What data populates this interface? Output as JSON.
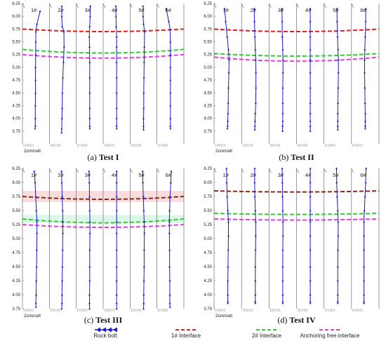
{
  "chart_data": [
    {
      "type": "line",
      "caption_prefix": "(a) ",
      "caption_bold": "Test I",
      "ylim": [
        3.5,
        6.25
      ],
      "yticks": [
        "6.25",
        "6.00",
        "5.75",
        "5.50",
        "5.25",
        "5.00",
        "4.75",
        "4.50",
        "4.25",
        "4.00",
        "3.75"
      ],
      "scale_label": "2cm/cell",
      "bolts": [
        {
          "name": "1#",
          "x": [
            2.0,
            0.5,
            0.0,
            -0.1,
            -0.1,
            -0.2,
            -0.2,
            -0.2,
            -0.3,
            -0.3,
            -0.3,
            -0.4
          ],
          "y": [
            6.1,
            5.85,
            5.7,
            5.5,
            5.25,
            5.0,
            4.75,
            4.5,
            4.25,
            4.0,
            3.85,
            3.8
          ]
        },
        {
          "name": "2#",
          "x": [
            -0.5,
            -0.5,
            -0.3,
            0.5,
            0.6,
            0.3,
            0.0,
            -0.2,
            -0.3,
            -0.4,
            -0.5,
            -0.6
          ],
          "y": [
            6.2,
            6.0,
            5.8,
            5.7,
            5.4,
            5.1,
            4.8,
            4.5,
            4.2,
            4.0,
            3.8,
            3.72
          ]
        },
        {
          "name": "3#",
          "x": [
            0.3,
            0.2,
            0.0,
            -0.2,
            -0.1,
            0.0,
            0.0,
            0.0,
            0.0,
            0.0,
            0.0,
            0.0
          ],
          "y": [
            6.2,
            6.0,
            5.8,
            5.6,
            5.4,
            5.1,
            4.8,
            4.5,
            4.2,
            4.0,
            3.85,
            3.8
          ]
        },
        {
          "name": "4#",
          "x": [
            -0.4,
            -0.3,
            -0.2,
            0.0,
            0.0,
            0.0,
            0.0,
            0.0,
            0.0,
            0.0,
            0.0,
            0.0
          ],
          "y": [
            6.2,
            6.0,
            5.8,
            5.6,
            5.4,
            5.1,
            4.8,
            4.5,
            4.2,
            4.0,
            3.85,
            3.8
          ]
        },
        {
          "name": "5#",
          "x": [
            -0.2,
            -0.2,
            0.0,
            0.5,
            0.4,
            0.3,
            0.2,
            0.1,
            0.1,
            0.0,
            0.0,
            0.0
          ],
          "y": [
            6.2,
            6.0,
            5.85,
            5.7,
            5.4,
            5.1,
            4.8,
            4.5,
            4.2,
            4.0,
            3.85,
            3.78
          ]
        },
        {
          "name": "6#",
          "x": [
            -2.0,
            -0.8,
            -0.2,
            0.0,
            0.0,
            0.0,
            0.0,
            0.0,
            0.0,
            0.0,
            0.0,
            0.0
          ],
          "y": [
            6.15,
            5.9,
            5.75,
            5.5,
            5.25,
            5.0,
            4.75,
            4.5,
            4.25,
            4.0,
            3.85,
            3.8
          ]
        }
      ],
      "interfaces": [
        {
          "name": "1# Interface",
          "color": "#e02020",
          "x": [
            0,
            3,
            6
          ],
          "y": [
            5.75,
            5.7,
            5.75
          ]
        },
        {
          "name": "2# Interface",
          "color": "#33cc33",
          "x": [
            0,
            3,
            6
          ],
          "y": [
            5.35,
            5.28,
            5.35
          ]
        },
        {
          "name": "Anchoring free interface",
          "color": "#e040e0",
          "x": [
            0,
            3,
            6
          ],
          "y": [
            5.25,
            5.18,
            5.25
          ]
        }
      ]
    },
    {
      "type": "line",
      "caption_prefix": "(b) ",
      "caption_bold": "Test II",
      "ylim": [
        3.5,
        6.25
      ],
      "yticks": [
        "6.25",
        "6.00",
        "5.75",
        "5.50",
        "5.25",
        "5.00",
        "4.75",
        "4.50",
        "4.25",
        "4.00",
        "3.75"
      ],
      "scale_label": "2cm/cell",
      "bolts": [
        {
          "name": "1#",
          "x": [
            -1.5,
            -1.0,
            -0.3,
            0.3,
            0.6,
            0.5,
            0.3,
            0.2,
            0.1,
            0.0,
            -0.1,
            -0.2
          ],
          "y": [
            6.15,
            5.9,
            5.6,
            5.35,
            5.15,
            4.9,
            4.6,
            4.3,
            4.1,
            3.95,
            3.85,
            3.8
          ]
        },
        {
          "name": "2#",
          "x": [
            -0.5,
            -0.4,
            -0.2,
            0.0,
            0.2,
            0.3,
            0.3,
            0.2,
            0.0,
            -0.1,
            -0.2,
            -0.2
          ],
          "y": [
            6.15,
            5.9,
            5.6,
            5.35,
            5.15,
            4.9,
            4.6,
            4.3,
            4.1,
            3.95,
            3.85,
            3.78
          ]
        },
        {
          "name": "3#",
          "x": [
            -0.4,
            -0.3,
            -0.2,
            0.0,
            0.1,
            0.1,
            0.0,
            0.0,
            0.0,
            0.0,
            -0.1,
            -0.1
          ],
          "y": [
            6.15,
            5.9,
            5.6,
            5.35,
            5.15,
            4.9,
            4.6,
            4.3,
            4.1,
            3.95,
            3.85,
            3.75
          ]
        },
        {
          "name": "4#",
          "x": [
            0.0,
            0.0,
            0.0,
            0.0,
            0.0,
            0.0,
            0.0,
            0.0,
            0.0,
            0.0,
            0.0,
            0.0
          ],
          "y": [
            6.15,
            5.9,
            5.6,
            5.35,
            5.15,
            4.9,
            4.6,
            4.3,
            4.1,
            3.95,
            3.85,
            3.75
          ]
        },
        {
          "name": "5#",
          "x": [
            -0.4,
            -0.3,
            -0.1,
            0.1,
            0.3,
            0.3,
            0.2,
            0.1,
            0.0,
            0.0,
            0.0,
            0.0
          ],
          "y": [
            6.15,
            5.9,
            5.6,
            5.35,
            5.15,
            4.9,
            4.6,
            4.3,
            4.1,
            3.95,
            3.85,
            3.78
          ]
        },
        {
          "name": "6#",
          "x": [
            0.3,
            0.2,
            0.0,
            -0.2,
            -0.3,
            -0.3,
            -0.2,
            -0.1,
            0.0,
            0.0,
            0.0,
            0.0
          ],
          "y": [
            6.15,
            5.9,
            5.6,
            5.35,
            5.15,
            4.9,
            4.6,
            4.3,
            4.1,
            3.95,
            3.85,
            3.8
          ]
        }
      ],
      "interfaces": [
        {
          "name": "1# Interface",
          "color": "#e02020",
          "x": [
            0,
            3,
            6
          ],
          "y": [
            5.75,
            5.7,
            5.75
          ]
        },
        {
          "name": "2# Interface",
          "color": "#33cc33",
          "x": [
            0,
            3,
            6
          ],
          "y": [
            5.27,
            5.22,
            5.27
          ]
        },
        {
          "name": "Anchoring free interface",
          "color": "#e040e0",
          "x": [
            0,
            3,
            6
          ],
          "y": [
            5.2,
            5.12,
            5.2
          ]
        }
      ]
    },
    {
      "type": "line",
      "caption_prefix": "(c) ",
      "caption_bold": "Test III",
      "ylim": [
        3.75,
        6.25
      ],
      "yticks": [
        "6.25",
        "6.00",
        "5.75",
        "5.50",
        "5.25",
        "5.00",
        "4.75",
        "4.50",
        "4.25",
        "4.00",
        "3.75"
      ],
      "scale_label": "2cm/cell",
      "bolts": [
        {
          "name": "1#",
          "x": [
            -0.8,
            -0.4,
            -0.1,
            0.2,
            0.5,
            0.5,
            0.4,
            0.3,
            0.2,
            0.1,
            0.0,
            0.0
          ],
          "y": [
            6.2,
            6.0,
            5.75,
            5.5,
            5.3,
            5.1,
            4.8,
            4.5,
            4.25,
            4.0,
            3.85,
            3.78
          ]
        },
        {
          "name": "2#",
          "x": [
            -0.6,
            -0.5,
            -0.3,
            -0.1,
            0.0,
            0.0,
            -0.1,
            -0.2,
            -0.3,
            -0.4,
            -0.4,
            -0.5
          ],
          "y": [
            6.2,
            6.0,
            5.75,
            5.5,
            5.3,
            5.1,
            4.8,
            4.5,
            4.25,
            4.0,
            3.85,
            3.75
          ]
        },
        {
          "name": "3#",
          "x": [
            -0.3,
            -0.2,
            -0.1,
            0.0,
            0.1,
            0.1,
            0.0,
            0.0,
            0.0,
            -0.1,
            -0.1,
            -0.1
          ],
          "y": [
            6.2,
            6.0,
            5.75,
            5.5,
            5.3,
            5.1,
            4.8,
            4.5,
            4.25,
            4.0,
            3.85,
            3.75
          ]
        },
        {
          "name": "4#",
          "x": [
            0.0,
            0.0,
            0.0,
            0.0,
            0.0,
            0.0,
            0.0,
            0.0,
            0.0,
            0.0,
            0.0,
            0.0
          ],
          "y": [
            6.2,
            6.0,
            5.75,
            5.5,
            5.3,
            5.1,
            4.8,
            4.5,
            4.25,
            4.0,
            3.85,
            3.75
          ]
        },
        {
          "name": "5#",
          "x": [
            -0.4,
            -0.3,
            -0.1,
            0.1,
            0.3,
            0.4,
            0.3,
            0.3,
            0.2,
            0.1,
            0.1,
            0.0
          ],
          "y": [
            6.2,
            6.0,
            5.75,
            5.5,
            5.3,
            5.1,
            4.8,
            4.5,
            4.25,
            4.0,
            3.85,
            3.75
          ]
        },
        {
          "name": "6#",
          "x": [
            0.4,
            0.2,
            -0.2,
            -0.4,
            -0.5,
            -0.5,
            -0.4,
            -0.4,
            -0.3,
            -0.3,
            -0.3,
            -0.2
          ],
          "y": [
            6.2,
            6.0,
            5.75,
            5.5,
            5.3,
            5.1,
            4.8,
            4.5,
            4.25,
            4.0,
            3.85,
            3.78
          ]
        }
      ],
      "interfaces": [
        {
          "name": "1# Interface",
          "color": "#8b2a1a",
          "x": [
            0,
            3,
            6
          ],
          "y": [
            5.75,
            5.7,
            5.75
          ]
        },
        {
          "name": "2# Interface",
          "color": "#33cc33",
          "x": [
            0,
            3,
            6
          ],
          "y": [
            5.35,
            5.28,
            5.35
          ]
        },
        {
          "name": "Anchoring free interface",
          "color": "#e040e0",
          "x": [
            0,
            3,
            6
          ],
          "y": [
            5.25,
            5.2,
            5.25
          ]
        }
      ],
      "bands": [
        {
          "color": "#f4c0c0",
          "y": [
            5.85,
            5.65
          ]
        },
        {
          "color": "#c0f0d8",
          "y": [
            5.42,
            5.28
          ]
        }
      ]
    },
    {
      "type": "line",
      "caption_prefix": "(d) ",
      "caption_bold": "Test IV",
      "ylim": [
        3.75,
        6.25
      ],
      "yticks": [
        "6.25",
        "6.00",
        "5.75",
        "5.50",
        "5.25",
        "5.00",
        "4.75",
        "4.50",
        "4.25",
        "4.00",
        "3.75"
      ],
      "scale_label": "2cm/cell",
      "bolts": [
        {
          "name": "1#",
          "x": [
            -0.6,
            -0.5,
            -0.3,
            0.0,
            0.3,
            0.3,
            0.2,
            0.1,
            0.0,
            0.0,
            0.0,
            0.0
          ],
          "y": [
            6.25,
            6.0,
            5.75,
            5.5,
            5.3,
            5.05,
            4.8,
            4.5,
            4.25,
            4.0,
            3.88,
            3.85
          ]
        },
        {
          "name": "2#",
          "x": [
            -0.3,
            -0.3,
            -0.2,
            0.0,
            0.2,
            0.2,
            0.1,
            0.0,
            0.0,
            0.0,
            0.0,
            0.0
          ],
          "y": [
            6.25,
            6.0,
            5.75,
            5.5,
            5.3,
            5.05,
            4.8,
            4.5,
            4.25,
            4.0,
            3.88,
            3.85
          ]
        },
        {
          "name": "3#",
          "x": [
            -0.3,
            -0.2,
            -0.1,
            0.0,
            0.1,
            0.1,
            0.0,
            0.0,
            0.0,
            0.0,
            0.0,
            0.0
          ],
          "y": [
            6.25,
            6.0,
            5.75,
            5.5,
            5.3,
            5.05,
            4.8,
            4.5,
            4.25,
            4.0,
            3.88,
            3.85
          ]
        },
        {
          "name": "4#",
          "x": [
            0.0,
            0.0,
            0.0,
            0.0,
            0.0,
            0.0,
            0.0,
            0.0,
            0.0,
            0.0,
            0.0,
            0.0
          ],
          "y": [
            6.25,
            6.0,
            5.75,
            5.5,
            5.3,
            5.05,
            4.8,
            4.5,
            4.25,
            4.0,
            3.88,
            3.85
          ]
        },
        {
          "name": "5#",
          "x": [
            -0.6,
            -0.5,
            -0.3,
            0.0,
            0.2,
            0.2,
            0.1,
            0.0,
            0.0,
            0.0,
            0.0,
            0.0
          ],
          "y": [
            6.25,
            6.0,
            5.75,
            5.5,
            5.3,
            5.05,
            4.8,
            4.5,
            4.25,
            4.0,
            3.88,
            3.85
          ]
        },
        {
          "name": "6#",
          "x": [
            0.4,
            0.2,
            -0.1,
            -0.4,
            -0.6,
            -0.6,
            -0.6,
            -0.6,
            -0.6,
            -0.6,
            -0.6,
            -0.6
          ],
          "y": [
            6.25,
            6.0,
            5.75,
            5.5,
            5.3,
            5.05,
            4.8,
            4.5,
            4.25,
            4.0,
            3.88,
            3.85
          ]
        }
      ],
      "interfaces": [
        {
          "name": "1# Interface",
          "color": "#8b2a1a",
          "x": [
            0,
            3,
            6
          ],
          "y": [
            5.85,
            5.83,
            5.85
          ]
        },
        {
          "name": "2# Interface",
          "color": "#33cc33",
          "x": [
            0,
            3,
            6
          ],
          "y": [
            5.45,
            5.43,
            5.45
          ]
        },
        {
          "name": "Anchoring free interface",
          "color": "#e040e0",
          "x": [
            0,
            3,
            6
          ],
          "y": [
            5.35,
            5.33,
            5.35
          ]
        }
      ]
    }
  ],
  "legend": [
    {
      "label": "Rock bolt",
      "color": "#1a1acc",
      "style": "arrows"
    },
    {
      "label": "1# Interface",
      "color": "#c03030",
      "style": "dash"
    },
    {
      "label": "2# Interface",
      "color": "#33cc33",
      "style": "dash"
    },
    {
      "label": "Anchoring free interface",
      "color": "#e040e0",
      "style": "dash"
    }
  ]
}
